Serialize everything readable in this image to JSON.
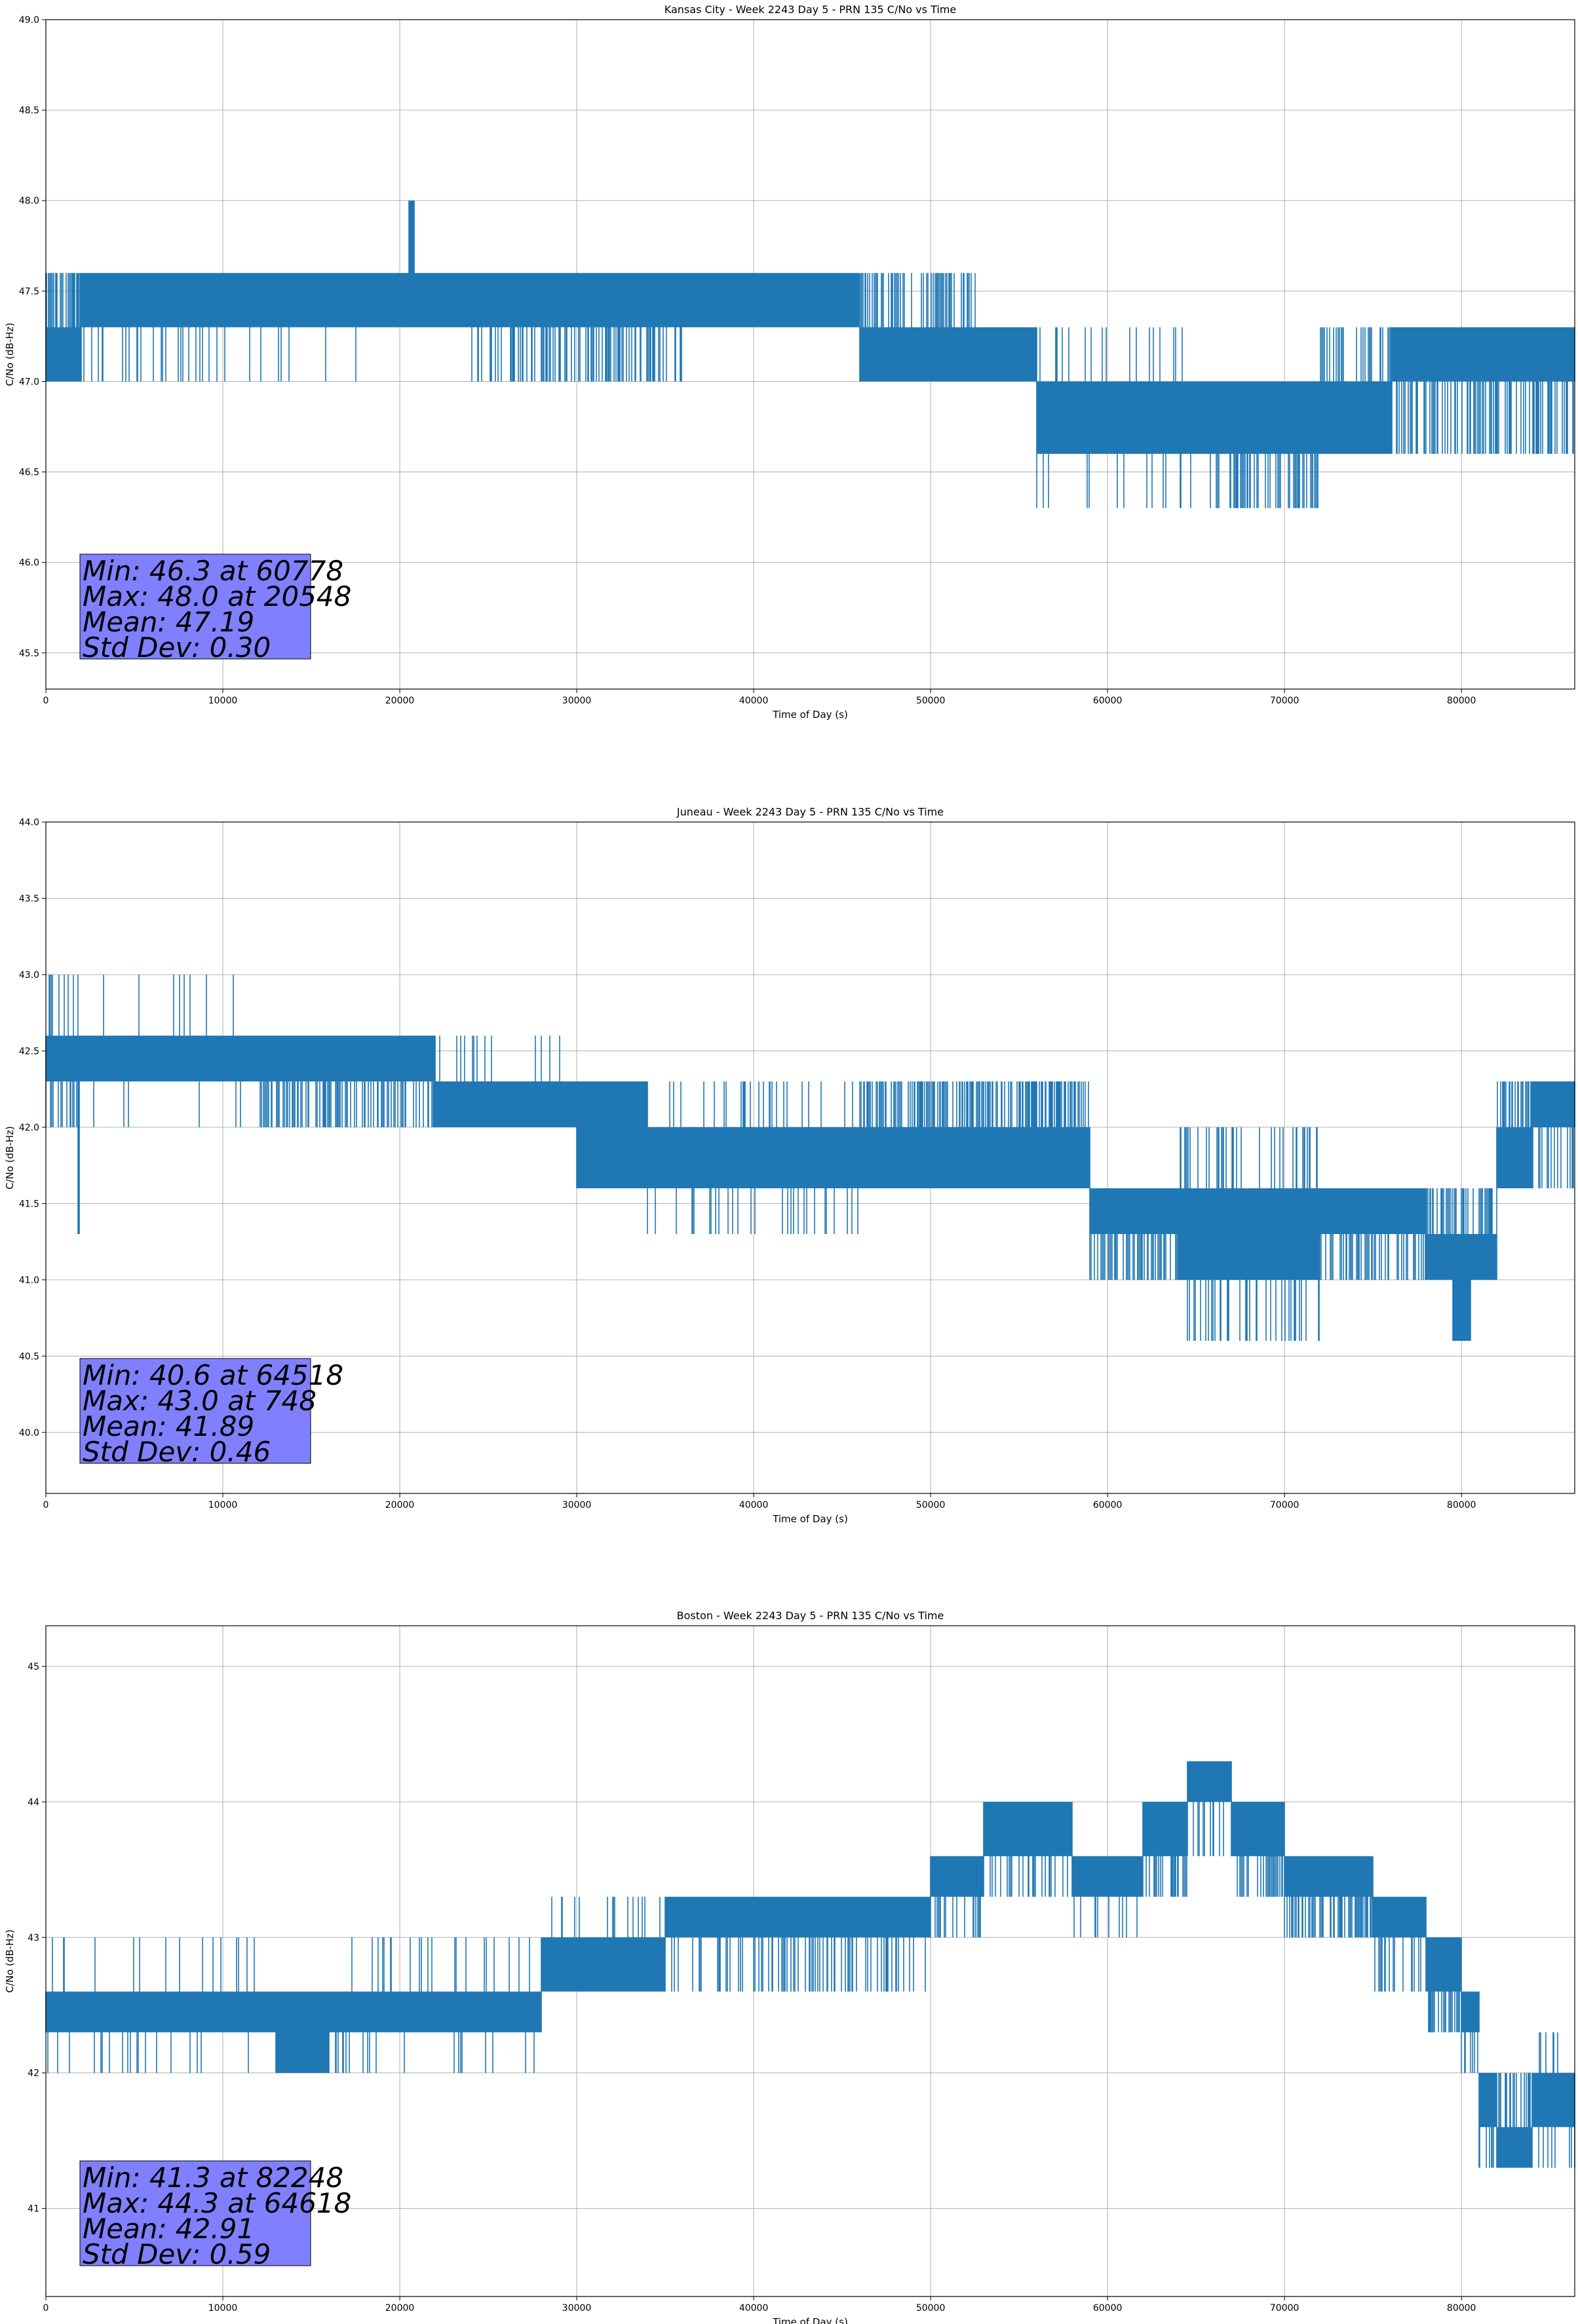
{
  "chart_data": [
    {
      "type": "line",
      "title": "Kansas City - Week 2243 Day 5 - PRN 135 C/No vs Time",
      "xlabel": "Time of Day (s)",
      "ylabel": "C/No (dB-Hz)",
      "xlim": [
        0,
        86400
      ],
      "ylim": [
        45.3,
        49.0
      ],
      "xticks": [
        0,
        10000,
        20000,
        30000,
        40000,
        50000,
        60000,
        70000,
        80000
      ],
      "yticks": [
        45.5,
        46.0,
        46.5,
        47.0,
        47.5,
        48.0,
        48.5,
        49.0
      ],
      "ytick_labels": [
        "45.5",
        "46.0",
        "46.5",
        "47.0",
        "47.5",
        "48.0",
        "48.5",
        "49.0"
      ],
      "grid": true,
      "series_color": "#1f77b4",
      "stats": [
        "Min: 46.3 at 60778",
        "Max: 48.0 at 20548",
        "Mean: 47.19",
        "Std Dev: 0.30"
      ],
      "noise_seed": 11,
      "segments": [
        {
          "x": [
            0,
            2000
          ],
          "lo": 47.0,
          "hi": 47.3,
          "spike_hi": 47.6,
          "rate": 0.5
        },
        {
          "x": [
            2000,
            10000
          ],
          "lo": 47.3,
          "hi": 47.6,
          "spike_lo": 47.0,
          "rate": 0.12
        },
        {
          "x": [
            10000,
            20000
          ],
          "lo": 47.3,
          "hi": 47.6,
          "spike_lo": 47.0,
          "rate": 0.03
        },
        {
          "x": [
            20500,
            20800
          ],
          "lo": 47.6,
          "hi": 48.0,
          "rate": 0.6
        },
        {
          "x": [
            20000,
            24000
          ],
          "lo": 47.3,
          "hi": 47.6,
          "rate": 0.0
        },
        {
          "x": [
            24000,
            36000
          ],
          "lo": 47.3,
          "hi": 47.6,
          "spike_lo": 47.0,
          "rate": 0.3
        },
        {
          "x": [
            36000,
            46000
          ],
          "lo": 47.3,
          "hi": 47.6,
          "rate": 0.02
        },
        {
          "x": [
            46000,
            52500
          ],
          "lo": 47.0,
          "hi": 47.3,
          "spike_hi": 47.6,
          "rate": 0.35
        },
        {
          "x": [
            52500,
            56000
          ],
          "lo": 47.0,
          "hi": 47.3,
          "rate": 0.05
        },
        {
          "x": [
            56000,
            66000
          ],
          "lo": 46.6,
          "hi": 47.0,
          "spike_lo": 46.3,
          "spike_hi": 47.3,
          "rate": 0.12
        },
        {
          "x": [
            66000,
            72000
          ],
          "lo": 46.6,
          "hi": 47.0,
          "spike_lo": 46.3,
          "rate": 0.35
        },
        {
          "x": [
            72000,
            76000
          ],
          "lo": 46.6,
          "hi": 47.0,
          "spike_hi": 47.3,
          "rate": 0.25
        },
        {
          "x": [
            76000,
            86400
          ],
          "lo": 47.0,
          "hi": 47.3,
          "spike_lo": 46.6,
          "rate": 0.35
        }
      ]
    },
    {
      "type": "line",
      "title": "Juneau - Week 2243 Day 5 - PRN 135 C/No vs Time",
      "xlabel": "Time of Day (s)",
      "ylabel": "C/No (dB-Hz)",
      "xlim": [
        0,
        86400
      ],
      "ylim": [
        39.6,
        44.0
      ],
      "xticks": [
        0,
        10000,
        20000,
        30000,
        40000,
        50000,
        60000,
        70000,
        80000
      ],
      "yticks": [
        40.0,
        40.5,
        41.0,
        41.5,
        42.0,
        42.5,
        43.0,
        43.5,
        44.0
      ],
      "ytick_labels": [
        "40.0",
        "40.5",
        "41.0",
        "41.5",
        "42.0",
        "42.5",
        "43.0",
        "43.5",
        "44.0"
      ],
      "grid": true,
      "series_color": "#1f77b4",
      "stats": [
        "Min: 40.6 at 64518",
        "Max: 43.0 at 748",
        "Mean: 41.89",
        "Std Dev: 0.46"
      ],
      "noise_seed": 23,
      "segments": [
        {
          "x": [
            0,
            2000
          ],
          "lo": 42.3,
          "hi": 42.6,
          "spike_hi": 43.0,
          "spike_lo": 42.0,
          "rate": 0.4
        },
        {
          "x": [
            1800,
            1900
          ],
          "lo": 41.3,
          "hi": 42.3,
          "rate": 1.0
        },
        {
          "x": [
            2000,
            12000
          ],
          "lo": 42.3,
          "hi": 42.6,
          "spike_lo": 42.0,
          "spike_hi": 43.0,
          "rate": 0.04
        },
        {
          "x": [
            12000,
            22000
          ],
          "lo": 42.3,
          "hi": 42.6,
          "spike_lo": 42.0,
          "rate": 0.3
        },
        {
          "x": [
            22000,
            30000
          ],
          "lo": 42.0,
          "hi": 42.3,
          "spike_hi": 42.6,
          "rate": 0.05
        },
        {
          "x": [
            30000,
            34000
          ],
          "lo": 41.6,
          "hi": 42.3,
          "rate": 0.35
        },
        {
          "x": [
            34000,
            46000
          ],
          "lo": 41.6,
          "hi": 42.0,
          "spike_lo": 41.3,
          "spike_hi": 42.3,
          "rate": 0.15
        },
        {
          "x": [
            46000,
            59000
          ],
          "lo": 41.6,
          "hi": 42.0,
          "spike_hi": 42.3,
          "rate": 0.45
        },
        {
          "x": [
            59000,
            64000
          ],
          "lo": 41.3,
          "hi": 41.6,
          "spike_lo": 41.0,
          "rate": 0.35
        },
        {
          "x": [
            64000,
            72000
          ],
          "lo": 41.0,
          "hi": 41.6,
          "spike_lo": 40.6,
          "spike_hi": 42.0,
          "rate": 0.35
        },
        {
          "x": [
            72000,
            78000
          ],
          "lo": 41.3,
          "hi": 41.6,
          "spike_lo": 41.0,
          "rate": 0.25
        },
        {
          "x": [
            78000,
            82000
          ],
          "lo": 41.0,
          "hi": 41.3,
          "spike_hi": 41.6,
          "rate": 0.35
        },
        {
          "x": [
            79500,
            80500
          ],
          "lo": 40.6,
          "hi": 41.0,
          "rate": 0.6
        },
        {
          "x": [
            82000,
            84000
          ],
          "lo": 41.6,
          "hi": 42.0,
          "spike_hi": 42.3,
          "rate": 0.35
        },
        {
          "x": [
            84000,
            86400
          ],
          "lo": 42.0,
          "hi": 42.3,
          "spike_lo": 41.6,
          "rate": 0.2
        }
      ]
    },
    {
      "type": "line",
      "title": "Boston - Week 2243 Day 5 - PRN 135 C/No vs Time",
      "xlabel": "Time of Day (s)",
      "ylabel": "C/No (dB-Hz)",
      "xlim": [
        0,
        86400
      ],
      "ylim": [
        40.35,
        45.3
      ],
      "xticks": [
        0,
        10000,
        20000,
        30000,
        40000,
        50000,
        60000,
        70000,
        80000
      ],
      "yticks": [
        41,
        42,
        43,
        44,
        45
      ],
      "ytick_labels": [
        "41",
        "42",
        "43",
        "44",
        "45"
      ],
      "grid": true,
      "series_color": "#1f77b4",
      "stats": [
        "Min: 41.3 at 82248",
        "Max: 44.3 at 64618",
        "Mean: 42.91",
        "Std Dev: 0.59"
      ],
      "noise_seed": 37,
      "segments": [
        {
          "x": [
            0,
            13000
          ],
          "lo": 42.3,
          "hi": 42.6,
          "spike_hi": 43.0,
          "spike_lo": 42.0,
          "rate": 0.1
        },
        {
          "x": [
            13000,
            16000
          ],
          "lo": 42.0,
          "hi": 42.6,
          "rate": 0.4
        },
        {
          "x": [
            16000,
            28000
          ],
          "lo": 42.3,
          "hi": 42.6,
          "spike_hi": 43.0,
          "spike_lo": 42.0,
          "rate": 0.12
        },
        {
          "x": [
            28000,
            35000
          ],
          "lo": 42.6,
          "hi": 43.0,
          "spike_hi": 43.3,
          "rate": 0.08
        },
        {
          "x": [
            35000,
            50000
          ],
          "lo": 43.0,
          "hi": 43.3,
          "spike_lo": 42.6,
          "rate": 0.15
        },
        {
          "x": [
            50000,
            53000
          ],
          "lo": 43.3,
          "hi": 43.6,
          "spike_lo": 43.0,
          "rate": 0.2
        },
        {
          "x": [
            53000,
            58000
          ],
          "lo": 43.6,
          "hi": 44.0,
          "spike_lo": 43.3,
          "rate": 0.25
        },
        {
          "x": [
            58000,
            62000
          ],
          "lo": 43.3,
          "hi": 43.6,
          "spike_lo": 43.0,
          "rate": 0.1
        },
        {
          "x": [
            62000,
            64500
          ],
          "lo": 43.6,
          "hi": 44.0,
          "spike_lo": 43.3,
          "rate": 0.25
        },
        {
          "x": [
            64500,
            67000
          ],
          "lo": 44.0,
          "hi": 44.3,
          "spike_lo": 43.6,
          "rate": 0.2
        },
        {
          "x": [
            67000,
            70000
          ],
          "lo": 43.6,
          "hi": 44.0,
          "spike_lo": 43.3,
          "rate": 0.3
        },
        {
          "x": [
            70000,
            75000
          ],
          "lo": 43.3,
          "hi": 43.6,
          "spike_lo": 43.0,
          "rate": 0.35
        },
        {
          "x": [
            75000,
            78000
          ],
          "lo": 43.0,
          "hi": 43.3,
          "spike_lo": 42.6,
          "rate": 0.2
        },
        {
          "x": [
            78000,
            80000
          ],
          "lo": 42.6,
          "hi": 43.0,
          "spike_lo": 42.3,
          "rate": 0.3
        },
        {
          "x": [
            80000,
            81000
          ],
          "lo": 42.3,
          "hi": 42.6,
          "spike_lo": 42.0,
          "rate": 0.3
        },
        {
          "x": [
            81000,
            82000
          ],
          "lo": 41.6,
          "hi": 42.0,
          "spike_lo": 41.3,
          "rate": 0.3
        },
        {
          "x": [
            82000,
            84000
          ],
          "lo": 41.3,
          "hi": 41.6,
          "spike_hi": 42.0,
          "rate": 0.35
        },
        {
          "x": [
            84000,
            86400
          ],
          "lo": 41.6,
          "hi": 42.0,
          "spike_lo": 41.3,
          "spike_hi": 42.3,
          "rate": 0.2
        }
      ]
    }
  ]
}
